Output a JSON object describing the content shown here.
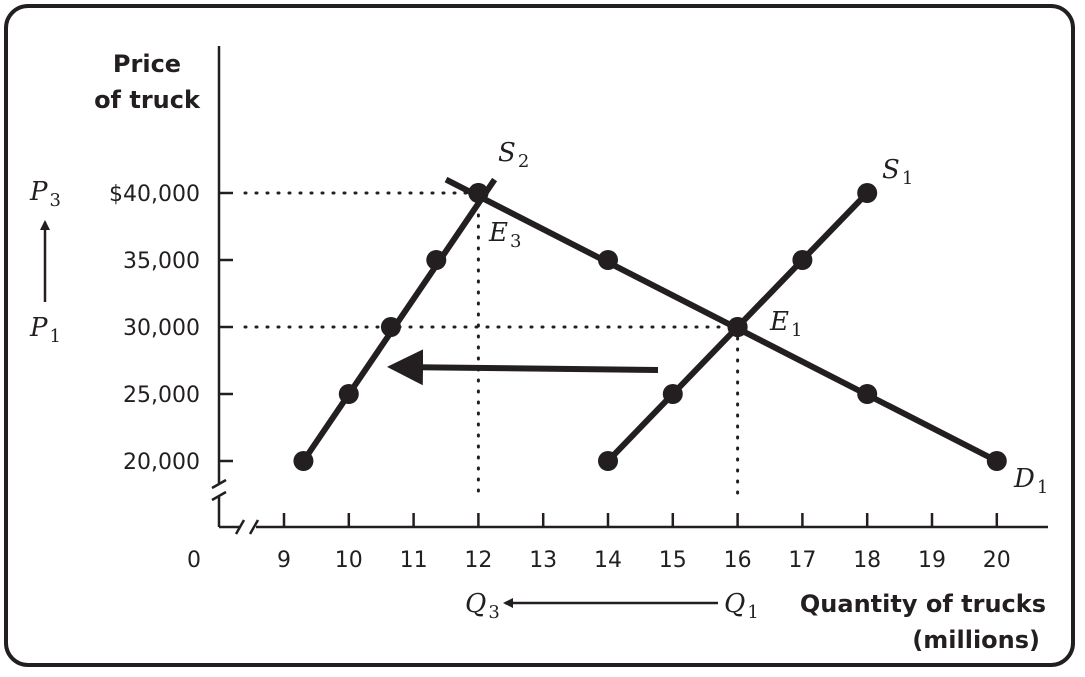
{
  "chart_data": {
    "type": "line",
    "ylabel": [
      "Price",
      "of truck"
    ],
    "xlabel": [
      "Quantity of trucks",
      "(millions)"
    ],
    "x_origin_label": "0",
    "x_ticks": [
      9,
      10,
      11,
      12,
      13,
      14,
      15,
      16,
      17,
      18,
      19,
      20
    ],
    "y_ticks": [
      {
        "value": 20000,
        "label": "20,000"
      },
      {
        "value": 25000,
        "label": "25,000"
      },
      {
        "value": 30000,
        "label": "30,000"
      },
      {
        "value": 35000,
        "label": "35,000"
      },
      {
        "value": 40000,
        "label": "$40,000"
      }
    ],
    "xlim": [
      8.5,
      20.7
    ],
    "ylim": [
      18000,
      50000
    ],
    "series": [
      {
        "name": "S",
        "sub": "2",
        "points": [
          [
            9.3,
            20000
          ],
          [
            10,
            25000
          ],
          [
            10.65,
            30000
          ],
          [
            11.35,
            35000
          ],
          [
            12,
            40000
          ]
        ],
        "line_extend": [
          [
            9.3,
            20000
          ],
          [
            12.25,
            41000
          ]
        ]
      },
      {
        "name": "S",
        "sub": "1",
        "points": [
          [
            14,
            20000
          ],
          [
            15,
            25000
          ],
          [
            16,
            30000
          ],
          [
            17,
            35000
          ],
          [
            18,
            40000
          ]
        ]
      },
      {
        "name": "D",
        "sub": "1",
        "points": [
          [
            20,
            20000
          ],
          [
            18,
            25000
          ],
          [
            16,
            30000
          ],
          [
            14,
            35000
          ],
          [
            12,
            40000
          ]
        ],
        "line_extend": [
          [
            11.5,
            41000
          ],
          [
            20,
            20000
          ]
        ]
      }
    ],
    "equilibria": [
      {
        "name": "E",
        "sub": "1",
        "x": 16,
        "y": 30000
      },
      {
        "name": "E",
        "sub": "3",
        "x": 12,
        "y": 40000
      }
    ],
    "annotations": {
      "p3": {
        "name": "P",
        "sub": "3"
      },
      "p1": {
        "name": "P",
        "sub": "1"
      },
      "q3": {
        "name": "Q",
        "sub": "3"
      },
      "q1": {
        "name": "Q",
        "sub": "1"
      }
    },
    "grid": false,
    "line_color": "#231f20"
  }
}
